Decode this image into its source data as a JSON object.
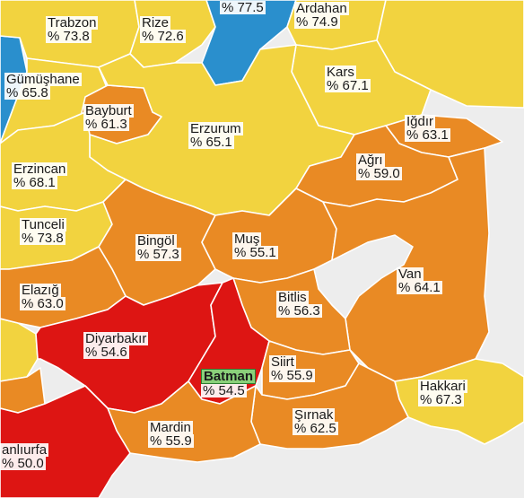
{
  "colors": {
    "background": "#ededed",
    "yellow": "#f2d33f",
    "orange": "#e98a24",
    "red": "#dd1513",
    "blue": "#2a8fcd",
    "highlight": "#8ad07a",
    "border": "#ffffff"
  },
  "provinces": [
    {
      "key": "trabzon",
      "name": "Trabzon",
      "value": "% 73.8",
      "color": "yellow"
    },
    {
      "key": "rize",
      "name": "Rize",
      "value": "% 72.6",
      "color": "yellow"
    },
    {
      "key": "artvin",
      "name": "",
      "value": "% 77.5",
      "color": "blue"
    },
    {
      "key": "ardahan",
      "name": "Ardahan",
      "value": "% 74.9",
      "color": "yellow"
    },
    {
      "key": "gumushane",
      "name": "Gümüşhane",
      "value": "% 65.8",
      "color": "yellow"
    },
    {
      "key": "kars",
      "name": "Kars",
      "value": "% 67.1",
      "color": "yellow"
    },
    {
      "key": "bayburt",
      "name": "Bayburt",
      "value": "% 61.3",
      "color": "orange"
    },
    {
      "key": "igdir",
      "name": "Iğdır",
      "value": "% 63.1",
      "color": "orange"
    },
    {
      "key": "erzurum",
      "name": "Erzurum",
      "value": "% 65.1",
      "color": "yellow"
    },
    {
      "key": "agri",
      "name": "Ağrı",
      "value": "% 59.0",
      "color": "orange"
    },
    {
      "key": "erzincan",
      "name": "Erzincan",
      "value": "% 68.1",
      "color": "yellow"
    },
    {
      "key": "tunceli",
      "name": "Tunceli",
      "value": "% 73.8",
      "color": "yellow"
    },
    {
      "key": "bingol",
      "name": "Bingöl",
      "value": "% 57.3",
      "color": "orange"
    },
    {
      "key": "mus",
      "name": "Muş",
      "value": "% 55.1",
      "color": "orange"
    },
    {
      "key": "van",
      "name": "Van",
      "value": "% 64.1",
      "color": "orange"
    },
    {
      "key": "elazig",
      "name": "Elazığ",
      "value": "% 63.0",
      "color": "orange"
    },
    {
      "key": "bitlis",
      "name": "Bitlis",
      "value": "% 56.3",
      "color": "orange"
    },
    {
      "key": "diyarbakir",
      "name": "Diyarbakır",
      "value": "% 54.6",
      "color": "red"
    },
    {
      "key": "batman",
      "name": "Batman",
      "value": "% 54.5",
      "color": "red"
    },
    {
      "key": "siirt",
      "name": "Siirt",
      "value": "% 55.9",
      "color": "orange"
    },
    {
      "key": "hakkari",
      "name": "Hakkari",
      "value": "% 67.3",
      "color": "yellow"
    },
    {
      "key": "sirnak",
      "name": "Şırnak",
      "value": "% 62.5",
      "color": "orange"
    },
    {
      "key": "mardin",
      "name": "Mardin",
      "value": "% 55.9",
      "color": "orange"
    },
    {
      "key": "sanliurfa",
      "name": "anlıurfa",
      "value": "% 50.0",
      "color": "red"
    }
  ]
}
